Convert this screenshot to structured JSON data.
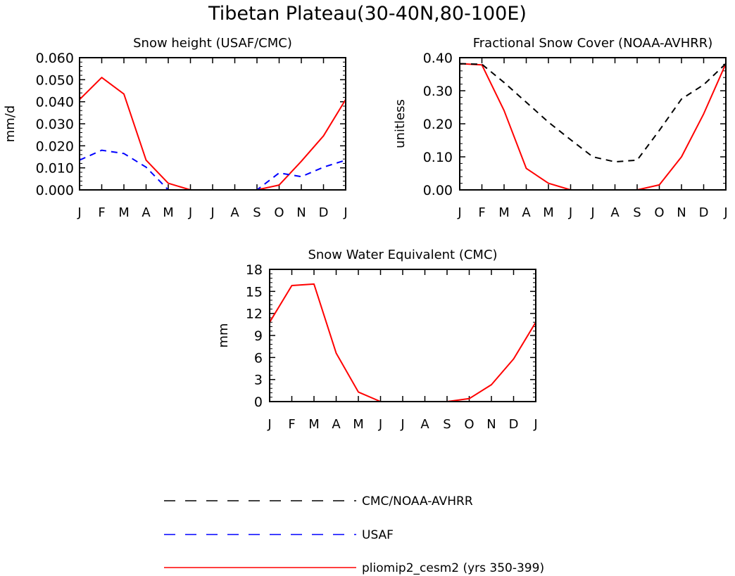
{
  "figure_title": "Tibetan Plateau(30-40N,80-100E)",
  "months": [
    "J",
    "F",
    "M",
    "A",
    "M",
    "J",
    "J",
    "A",
    "S",
    "O",
    "N",
    "D",
    "J"
  ],
  "colors": {
    "model": "#ff0000",
    "usaf": "#0000ff",
    "cmc": "#000000"
  },
  "legend": {
    "items": [
      {
        "label": "CMC/NOAA-AVHRR",
        "style": "dashed",
        "color": "#000000"
      },
      {
        "label": "USAF",
        "style": "dashed",
        "color": "#0000ff"
      },
      {
        "label": "pliomip2_cesm2 (yrs 350-399)",
        "style": "solid",
        "color": "#ff0000"
      }
    ]
  },
  "chart_data": [
    {
      "id": "snow-height",
      "type": "line",
      "title": "Snow height (USAF/CMC)",
      "ylabel": "mm/d",
      "ylim": [
        0,
        0.06
      ],
      "yticks": [
        "0.000",
        "0.010",
        "0.020",
        "0.030",
        "0.040",
        "0.050",
        "0.060"
      ],
      "x": [
        "J",
        "F",
        "M",
        "A",
        "M",
        "J",
        "J",
        "A",
        "S",
        "O",
        "N",
        "D",
        "J"
      ],
      "series": [
        {
          "key": "model",
          "style": "solid",
          "values": [
            0.041,
            0.051,
            0.0435,
            0.0135,
            0.003,
            0.0,
            0.0,
            0.0,
            0.0,
            0.0022,
            0.013,
            0.0245,
            0.041
          ]
        },
        {
          "key": "usaf",
          "style": "dashed",
          "values": [
            0.0135,
            0.018,
            0.0165,
            0.0103,
            0.0,
            0.0,
            0.0,
            0.0,
            0.0,
            0.0077,
            0.006,
            0.0103,
            0.0135
          ]
        },
        {
          "key": "cmc",
          "style": "dashed",
          "values": [
            0,
            0,
            0,
            0,
            0,
            0,
            0,
            0,
            0,
            0,
            0,
            0,
            0
          ]
        }
      ]
    },
    {
      "id": "snow-cover",
      "type": "line",
      "title": "Fractional Snow Cover (NOAA-AVHRR)",
      "ylabel": "unitless",
      "ylim": [
        0,
        0.4
      ],
      "yticks": [
        "0.00",
        "0.10",
        "0.20",
        "0.30",
        "0.40"
      ],
      "x": [
        "J",
        "F",
        "M",
        "A",
        "M",
        "J",
        "J",
        "A",
        "S",
        "O",
        "N",
        "D",
        "J"
      ],
      "series": [
        {
          "key": "model",
          "style": "solid",
          "values": [
            0.382,
            0.378,
            0.24,
            0.065,
            0.02,
            0.0,
            0.0,
            0.0,
            0.0,
            0.015,
            0.1,
            0.23,
            0.382
          ]
        },
        {
          "key": "cmc",
          "style": "dashed",
          "values": [
            0.382,
            0.38,
            0.325,
            0.265,
            0.205,
            0.152,
            0.1,
            0.085,
            0.09,
            0.18,
            0.275,
            0.318,
            0.382
          ]
        }
      ]
    },
    {
      "id": "swe",
      "type": "line",
      "title": "Snow Water Equivalent (CMC)",
      "ylabel": "mm",
      "ylim": [
        0,
        18
      ],
      "yticks": [
        "0",
        "3",
        "6",
        "9",
        "12",
        "15",
        "18"
      ],
      "x": [
        "J",
        "F",
        "M",
        "A",
        "M",
        "J",
        "J",
        "A",
        "S",
        "O",
        "N",
        "D",
        "J"
      ],
      "series": [
        {
          "key": "model",
          "style": "solid",
          "values": [
            10.8,
            15.8,
            16.0,
            6.6,
            1.3,
            0.0,
            0.0,
            0.0,
            0.0,
            0.4,
            2.3,
            5.8,
            10.8
          ]
        },
        {
          "key": "cmc",
          "style": "dashed",
          "values": [
            0,
            0,
            0,
            0,
            0,
            0,
            0,
            0,
            0,
            0,
            0,
            0,
            0
          ]
        }
      ]
    }
  ]
}
